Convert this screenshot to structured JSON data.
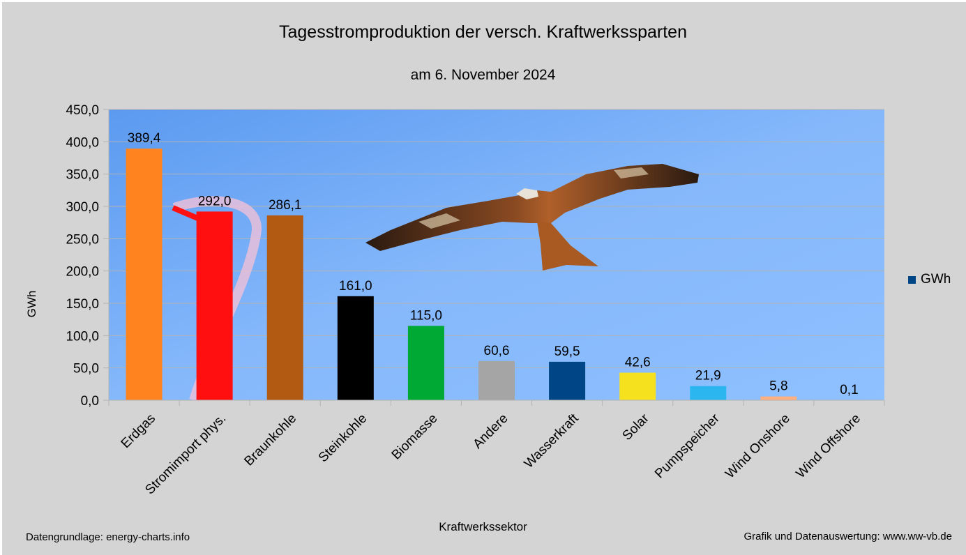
{
  "chart_data": {
    "type": "bar",
    "title": "Tagesstromproduktion der versch. Kraftwerkssparten",
    "subtitle": "am 6. November 2024",
    "xlabel": "Kraftwerkssektor",
    "ylabel": "GWh",
    "ylim": [
      0,
      450
    ],
    "yticks": [
      "0,0",
      "50,0",
      "100,0",
      "150,0",
      "200,0",
      "250,0",
      "300,0",
      "350,0",
      "400,0",
      "450,0"
    ],
    "ytick_values": [
      0,
      50,
      100,
      150,
      200,
      250,
      300,
      350,
      400,
      450
    ],
    "categories": [
      "Erdgas",
      "Stromimport phys.",
      "Braunkohle",
      "Steinkohle",
      "Biomasse",
      "Andere",
      "Wasserkraft",
      "Solar",
      "Pumpspeicher",
      "Wind Onshore",
      "Wind Offshore"
    ],
    "values": [
      389.4,
      292.0,
      286.1,
      161.0,
      115.0,
      60.6,
      59.5,
      42.6,
      21.9,
      5.8,
      0.1
    ],
    "value_labels": [
      "389,4",
      "292,0",
      "286,1",
      "161,0",
      "115,0",
      "60,6",
      "59,5",
      "42,6",
      "21,9",
      "5,8",
      "0,1"
    ],
    "bar_colors": [
      "#ff8420",
      "#ff0f0f",
      "#b35a12",
      "#000000",
      "#00a933",
      "#a5a5a5",
      "#004586",
      "#f5e11e",
      "#2cb6f0",
      "#ffb081",
      "#1f8ad9"
    ],
    "legend": [
      {
        "name": "GWh",
        "color": "#004586"
      }
    ],
    "legend_position": "right",
    "grid": true,
    "background": "sky photo with red kite"
  },
  "footer": {
    "source": "Datengrundlage: energy-charts.info",
    "credit": "Grafik und Datenauswertung: www.ww-vb.de"
  }
}
